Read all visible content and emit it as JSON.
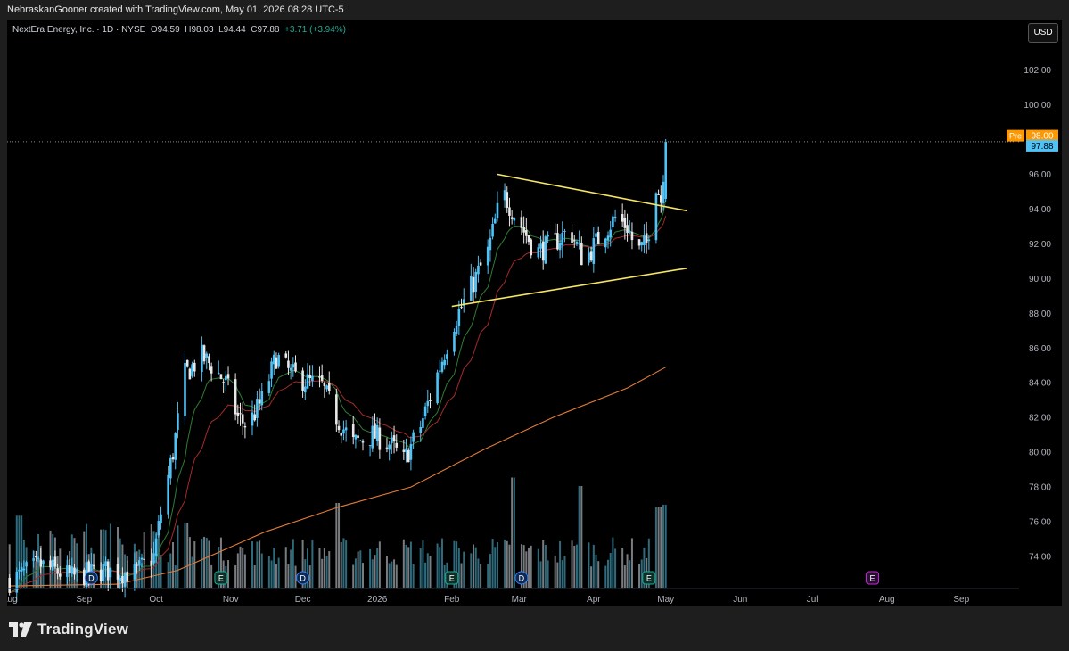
{
  "header": {
    "text": "NebraskanGooner created with TradingView.com, May 01, 2026 08:28 UTC-5"
  },
  "legend": {
    "symbol": "NextEra Energy, Inc. · 1D · NYSE",
    "o_label": "O",
    "o_val": "94.59",
    "h_label": "H",
    "h_val": "98.03",
    "l_label": "L",
    "l_val": "94.44",
    "c_label": "C",
    "c_val": "97.88",
    "change": "+3.71 (+3.94%)"
  },
  "currency_button": "USD",
  "footer": {
    "brand": "TradingView"
  },
  "colors": {
    "up": "#22ab94",
    "down": "#e8e8e8",
    "candle_light_blue": "#4fc3f7",
    "trendline": "#f5e663",
    "ema_green": "#2e7d32",
    "ema_red": "#a52a2a",
    "sma_orange": "#e07b39",
    "background": "#000000"
  },
  "chart_data": {
    "type": "candlestick",
    "title": "",
    "y_range": [
      72.2,
      104.5
    ],
    "y_ticks": [
      "102.00",
      "100.00",
      "98.00",
      "96.00",
      "94.00",
      "92.00",
      "90.00",
      "88.00",
      "86.00",
      "84.00",
      "82.00",
      "80.00",
      "78.00",
      "76.00",
      "74.00"
    ],
    "y_tick_values": [
      102,
      100,
      98,
      96,
      94,
      92,
      90,
      88,
      86,
      84,
      82,
      80,
      78,
      76,
      74
    ],
    "x_ticks": [
      "Aug",
      "Sep",
      "Oct",
      "Nov",
      "Dec",
      "2026",
      "Feb",
      "Mar",
      "Apr",
      "May",
      "Jun",
      "Jul",
      "Aug",
      "Sep"
    ],
    "x_tick_dates": [
      "2025-08-01",
      "2025-09-01",
      "2025-10-01",
      "2025-11-01",
      "2025-12-01",
      "2026-01-01",
      "2026-02-01",
      "2026-03-01",
      "2026-04-01",
      "2026-05-01",
      "2026-06-01",
      "2026-07-01",
      "2026-08-01",
      "2026-09-01"
    ],
    "x_range": [
      "2025-07-31",
      "2026-09-25"
    ],
    "last_price": {
      "label": "97.88",
      "value": 97.88
    },
    "pre_price": {
      "tag": "Pre",
      "label": "98.00",
      "value": 98.0
    },
    "anchors": [
      [
        "2025-08-01",
        72.6
      ],
      [
        "2025-08-14",
        73.5
      ],
      [
        "2025-08-27",
        72.8
      ],
      [
        "2025-09-09",
        73.2
      ],
      [
        "2025-09-22",
        73.0
      ],
      [
        "2025-09-30",
        74.0
      ],
      [
        "2025-10-03",
        76.5
      ],
      [
        "2025-10-08",
        80.0
      ],
      [
        "2025-10-13",
        84.5
      ],
      [
        "2025-10-20",
        85.5
      ],
      [
        "2025-10-24",
        85.0
      ],
      [
        "2025-10-30",
        84.0
      ],
      [
        "2025-11-04",
        82.0
      ],
      [
        "2025-11-08",
        81.5
      ],
      [
        "2025-11-14",
        83.0
      ],
      [
        "2025-11-20",
        85.5
      ],
      [
        "2025-11-26",
        84.5
      ],
      [
        "2025-12-04",
        84.0
      ],
      [
        "2025-12-09",
        83.8
      ],
      [
        "2025-12-15",
        82.0
      ],
      [
        "2025-12-22",
        80.5
      ],
      [
        "2025-12-30",
        81.0
      ],
      [
        "2026-01-06",
        80.5
      ],
      [
        "2026-01-12",
        79.5
      ],
      [
        "2026-01-19",
        81.5
      ],
      [
        "2026-01-26",
        84.5
      ],
      [
        "2026-02-02",
        87.5
      ],
      [
        "2026-02-09",
        89.5
      ],
      [
        "2026-02-16",
        91.5
      ],
      [
        "2026-02-22",
        95.0
      ],
      [
        "2026-03-02",
        93.0
      ],
      [
        "2026-03-08",
        91.5
      ],
      [
        "2026-03-15",
        92.0
      ],
      [
        "2026-03-22",
        92.8
      ],
      [
        "2026-03-28",
        91.0
      ],
      [
        "2026-04-04",
        92.5
      ],
      [
        "2026-04-10",
        93.5
      ],
      [
        "2026-04-15",
        93.0
      ],
      [
        "2026-04-19",
        91.5
      ],
      [
        "2026-04-23",
        92.0
      ],
      [
        "2026-04-27",
        95.5
      ],
      [
        "2026-04-29",
        94.5
      ],
      [
        "2026-05-01",
        97.9
      ]
    ],
    "volume_spikes": [
      [
        "2025-08-05",
        0.85
      ],
      [
        "2025-12-15",
        1.0
      ],
      [
        "2026-02-27",
        1.3
      ],
      [
        "2026-03-27",
        1.2
      ],
      [
        "2026-04-28",
        0.95
      ],
      [
        "2026-05-01",
        0.98
      ]
    ],
    "moving_averages": [
      {
        "type": "ema_short",
        "color": "#2e7d32"
      },
      {
        "type": "ema_mid",
        "color": "#a52a2a"
      },
      {
        "type": "sma_long",
        "color": "#e07b39",
        "points": [
          [
            "2025-08-01",
            72.3
          ],
          [
            "2025-09-15",
            72.4
          ],
          [
            "2025-10-10",
            73.2
          ],
          [
            "2025-11-15",
            75.4
          ],
          [
            "2025-12-15",
            76.8
          ],
          [
            "2026-01-15",
            78.0
          ],
          [
            "2026-02-15",
            80.2
          ],
          [
            "2026-03-15",
            82.0
          ],
          [
            "2026-04-15",
            83.7
          ],
          [
            "2026-05-01",
            84.9
          ]
        ]
      }
    ],
    "trendlines": [
      {
        "from": [
          "2026-02-20",
          96.0
        ],
        "to": [
          "2026-05-10",
          93.9
        ]
      },
      {
        "from": [
          "2026-02-01",
          88.4
        ],
        "to": [
          "2026-05-10",
          90.6
        ]
      }
    ],
    "event_markers": [
      {
        "label": "D",
        "date": "2025-09-04",
        "kind": "dividend"
      },
      {
        "label": "E",
        "date": "2025-10-28",
        "kind": "earnings"
      },
      {
        "label": "D",
        "date": "2025-12-01",
        "kind": "dividend"
      },
      {
        "label": "E",
        "date": "2026-02-01",
        "kind": "earnings"
      },
      {
        "label": "D",
        "date": "2026-03-02",
        "kind": "dividend"
      },
      {
        "label": "E",
        "date": "2026-04-24",
        "kind": "earnings"
      },
      {
        "label": "E",
        "date": "2026-07-26",
        "kind": "earnings_future"
      }
    ]
  }
}
